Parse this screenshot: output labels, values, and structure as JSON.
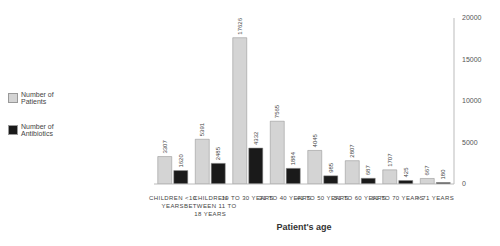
{
  "chart_data": {
    "type": "bar",
    "x_label": "Patient's age",
    "categories": [
      "CHILDREN <10 YEARS",
      "CHILDREN BETWEEN 11 TO 18 YEARS",
      "19 TO 30 YEARS",
      "31 TO 40 YEARS",
      "41 TO 50 YEARS",
      "51 TO 60 YEARS",
      "61 TO 70 YEARS",
      "> 71 YEARS"
    ],
    "series": [
      {
        "name": "Number of Patients",
        "color": "#d4d4d4",
        "values": [
          3307,
          5391,
          17626,
          7565,
          4045,
          2807,
          1707,
          667
        ]
      },
      {
        "name": "Number of Antibiotics",
        "color": "#1a1a1a",
        "values": [
          1620,
          2485,
          4332,
          1884,
          985,
          687,
          425,
          180
        ]
      }
    ],
    "ylim": [
      0,
      20000
    ],
    "yticks": [
      0,
      5000,
      10000,
      15000,
      20000
    ],
    "grid": false,
    "legend": "left",
    "data_labels": true
  }
}
